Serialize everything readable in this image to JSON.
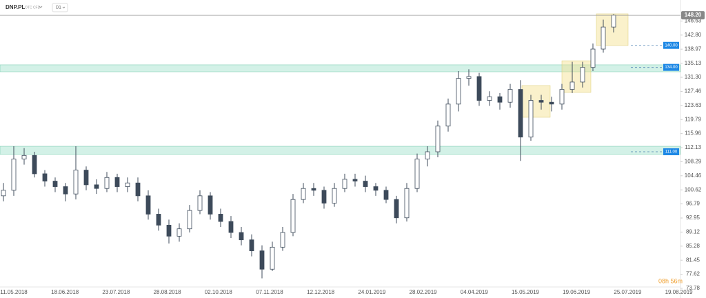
{
  "chart_data": {
    "type": "candlestick",
    "symbol": "DNP.PL",
    "market": "OTC CFD",
    "interval": "D1",
    "countdown": "08h 56m",
    "color": "#3d4a5a",
    "x_labels": [
      "11.05.2018",
      "18.06.2018",
      "23.07.2018",
      "28.08.2018",
      "02.10.2018",
      "07.11.2018",
      "12.12.2018",
      "24.01.2019",
      "28.02.2019",
      "04.04.2019",
      "15.05.2019",
      "19.06.2019",
      "25.07.2019",
      "19.08.2019"
    ],
    "open": [
      99,
      100.5,
      109,
      110,
      105,
      103,
      101.5,
      99.5,
      106,
      102,
      101,
      104,
      101.5,
      102.5,
      99,
      94,
      91,
      88,
      90,
      95,
      99,
      94,
      92,
      89,
      87,
      84,
      79,
      85,
      89,
      98,
      101,
      100.5,
      97,
      101,
      103.5,
      103,
      101.5,
      100.5,
      98,
      93,
      101,
      109,
      111,
      118,
      124,
      131,
      131.5,
      125,
      126,
      124.5,
      128,
      115,
      125,
      124.5,
      124,
      128,
      130,
      134,
      139,
      145
    ],
    "high": [
      102.5,
      112.5,
      112,
      111,
      106,
      104,
      102.5,
      112.5,
      107,
      103.5,
      105.5,
      105,
      104,
      104,
      100.5,
      95.5,
      92.5,
      91.5,
      96.5,
      100.5,
      100,
      95.5,
      93.5,
      90.5,
      88.5,
      85.5,
      86.5,
      90.5,
      99.5,
      102.5,
      102.5,
      101.5,
      102.5,
      105,
      105,
      104.5,
      102.5,
      101.5,
      99,
      102.5,
      110.5,
      112.5,
      119.5,
      125.5,
      133,
      133.5,
      132.5,
      127.5,
      127,
      129.5,
      130.5,
      126.5,
      126.5,
      126,
      129.5,
      135.5,
      135.5,
      140.5,
      147,
      148.5
    ],
    "low": [
      97.5,
      99,
      107.5,
      104,
      101.5,
      100,
      97.5,
      98,
      100.5,
      99.5,
      100,
      100,
      100,
      97.5,
      92.5,
      89.5,
      86,
      86.5,
      89,
      94,
      92.5,
      90.5,
      87.5,
      85.5,
      82.5,
      76.5,
      78.5,
      84,
      88,
      97,
      99,
      95.5,
      96,
      100,
      101.5,
      100,
      99,
      97,
      91.5,
      92,
      100,
      107,
      109.5,
      116.5,
      122,
      129,
      123.5,
      123.5,
      122.5,
      123,
      108.5,
      114,
      122.5,
      122,
      122.5,
      127,
      128.5,
      133,
      138,
      143.5
    ],
    "close": [
      100.5,
      109,
      110,
      105,
      103,
      101.5,
      99.5,
      106,
      102,
      101,
      104,
      101.5,
      102.5,
      99,
      94,
      91,
      88,
      90,
      95,
      99,
      94,
      92,
      89,
      87,
      84,
      79,
      85,
      89,
      98,
      101,
      100.5,
      97,
      101,
      103.5,
      103,
      101.5,
      100.5,
      98,
      93,
      101,
      109,
      111,
      118,
      124,
      131,
      131.5,
      125,
      126,
      124.5,
      128,
      115,
      125,
      124.5,
      124,
      128,
      130,
      134,
      139,
      145,
      148.2
    ],
    "ylim": [
      73.78,
      148.6
    ],
    "yticks": [
      146.63,
      {
        "value": 142.8,
        "label": "142.80"
      },
      138.97,
      135.13,
      {
        "value": 131.3,
        "label": "131.30"
      },
      127.46,
      123.63,
      119.79,
      115.96,
      112.13,
      108.29,
      104.46,
      100.62,
      96.79,
      92.95,
      89.12,
      85.28,
      81.45,
      77.62,
      73.78
    ],
    "last_price": {
      "value": 148.2,
      "label": "148.20"
    },
    "levels": [
      {
        "value": 140,
        "label": "140.00"
      },
      {
        "value": 134,
        "label": "134.00"
      },
      {
        "value": 111,
        "label": "111.00"
      }
    ],
    "zones": [
      {
        "low": 132.8,
        "high": 134.7
      },
      {
        "low": 110.3,
        "high": 112.5
      }
    ],
    "boxes": [
      {
        "low": 120.4,
        "high": 129.05
      },
      {
        "low": 127.17,
        "high": 135.8
      },
      {
        "low": 139.95,
        "high": 148.6
      }
    ]
  }
}
